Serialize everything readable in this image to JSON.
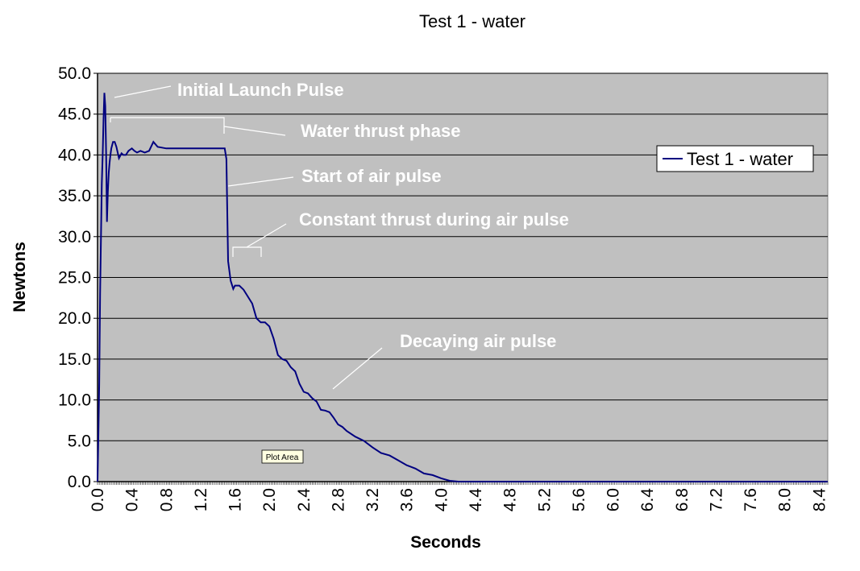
{
  "chart_data": {
    "type": "line",
    "title": "Test 1 - water",
    "xlabel": "Seconds",
    "ylabel": "Newtons",
    "xlim": [
      0,
      8.5
    ],
    "ylim": [
      0,
      50
    ],
    "grid": "horizontal",
    "plot_background": "#c0c0c0",
    "line_color": "#000080",
    "annotation_color": "#ffffff",
    "y_ticks": [
      "0.0",
      "5.0",
      "10.0",
      "15.0",
      "20.0",
      "25.0",
      "30.0",
      "35.0",
      "40.0",
      "45.0",
      "50.0"
    ],
    "x_ticks": [
      "0.0",
      "0.4",
      "0.8",
      "1.2",
      "1.6",
      "2.0",
      "2.4",
      "2.8",
      "3.2",
      "3.6",
      "4.0",
      "4.4",
      "4.8",
      "5.2",
      "5.6",
      "6.0",
      "6.4",
      "6.8",
      "7.2",
      "7.6",
      "8.0",
      "8.4"
    ],
    "legend": {
      "position": "right",
      "label": "Test 1 - water"
    },
    "annotations": [
      {
        "text": "Initial Launch Pulse"
      },
      {
        "text": "Water thrust phase"
      },
      {
        "text": "Start of air pulse"
      },
      {
        "text": "Constant thrust during air pulse"
      },
      {
        "text": "Decaying air pulse"
      }
    ],
    "tooltip": "Plot Area",
    "series": [
      {
        "name": "Test 1 - water",
        "x": [
          0.0,
          0.01,
          0.02,
          0.03,
          0.04,
          0.05,
          0.06,
          0.07,
          0.08,
          0.09,
          0.1,
          0.11,
          0.12,
          0.13,
          0.14,
          0.15,
          0.16,
          0.18,
          0.2,
          0.22,
          0.25,
          0.28,
          0.3,
          0.33,
          0.36,
          0.4,
          0.43,
          0.46,
          0.5,
          0.55,
          0.6,
          0.65,
          0.7,
          0.75,
          0.8,
          0.85,
          0.9,
          0.95,
          1.0,
          1.05,
          1.1,
          1.15,
          1.2,
          1.3,
          1.4,
          1.45,
          1.48,
          1.5,
          1.52,
          1.55,
          1.58,
          1.6,
          1.62,
          1.65,
          1.7,
          1.8,
          1.85,
          1.9,
          1.95,
          2.0,
          2.05,
          2.1,
          2.15,
          2.2,
          2.25,
          2.3,
          2.35,
          2.4,
          2.45,
          2.5,
          2.55,
          2.6,
          2.65,
          2.7,
          2.75,
          2.8,
          2.85,
          2.9,
          3.0,
          3.1,
          3.2,
          3.3,
          3.4,
          3.5,
          3.6,
          3.7,
          3.8,
          3.9,
          4.0,
          4.1,
          4.2,
          5.0,
          6.0,
          7.0,
          8.0,
          8.5
        ],
        "values": [
          0.0,
          6.0,
          12.0,
          23.0,
          30.0,
          36.5,
          40.0,
          44.5,
          47.6,
          46.0,
          40.0,
          31.8,
          35.5,
          37.8,
          39.0,
          40.0,
          40.8,
          41.6,
          41.6,
          41.0,
          39.6,
          40.2,
          40.0,
          40.0,
          40.5,
          40.8,
          40.5,
          40.3,
          40.5,
          40.3,
          40.5,
          41.6,
          41.0,
          40.9,
          40.8,
          40.8,
          40.8,
          40.8,
          40.8,
          40.8,
          40.8,
          40.8,
          40.8,
          40.8,
          40.8,
          40.8,
          40.8,
          39.5,
          27.0,
          24.6,
          23.6,
          24.0,
          24.0,
          24.0,
          23.5,
          21.8,
          20.0,
          19.5,
          19.5,
          19.0,
          17.5,
          15.5,
          15.0,
          14.8,
          14.0,
          13.5,
          12.0,
          11.0,
          10.8,
          10.2,
          9.8,
          8.8,
          8.7,
          8.5,
          7.8,
          7.0,
          6.7,
          6.2,
          5.5,
          5.0,
          4.2,
          3.5,
          3.2,
          2.6,
          2.0,
          1.6,
          1.0,
          0.8,
          0.4,
          0.1,
          0.0,
          0.0,
          0.0,
          0.0,
          0.0,
          0.0
        ]
      }
    ]
  }
}
